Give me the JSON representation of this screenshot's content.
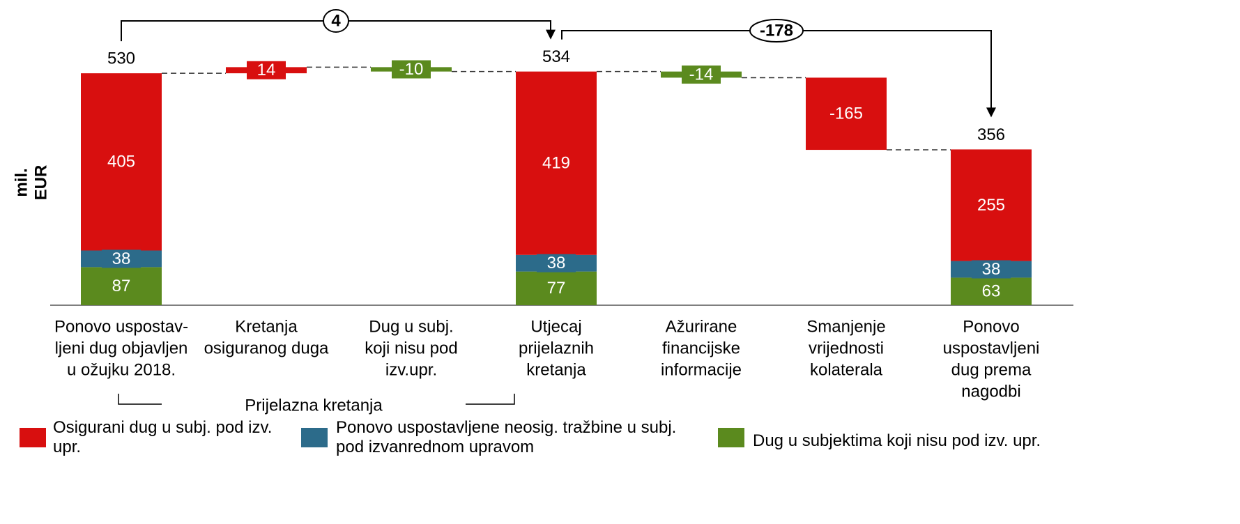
{
  "chart_data": {
    "type": "waterfall",
    "y_label": [
      "mil.",
      "EUR"
    ],
    "categories": [
      [
        "Ponovo uspostav-",
        "ljeni dug objavljen",
        "u ožujku 2018."
      ],
      [
        "Kretanja",
        "osiguranog duga"
      ],
      [
        "Dug u subj.",
        "koji nisu pod",
        "izv.upr."
      ],
      [
        "Utjecaj",
        "prijelaznih",
        "kretanja"
      ],
      [
        "Ažurirane",
        "financijske",
        "informacije"
      ],
      [
        "Smanjenje",
        "vrijednosti",
        "kolaterala"
      ],
      [
        "Ponovo",
        "uspostavljeni",
        "dug prema",
        "nagodbi"
      ]
    ],
    "totals": [
      530,
      null,
      null,
      534,
      null,
      null,
      356
    ],
    "series": [
      {
        "name": "Dug u subjektima koji nisu pod izv. upr.",
        "color": "#5b8a1e",
        "values": [
          87,
          null,
          -10,
          77,
          -14,
          null,
          63
        ]
      },
      {
        "name": "Ponovo uspostavljene neosig. tražbine u subj. pod izvanrednom upravom",
        "color": "#2c6b8a",
        "values": [
          38,
          null,
          null,
          38,
          null,
          null,
          38
        ]
      },
      {
        "name": "Osigurani dug u subj. pod izv. upr.",
        "color": "#d80f0f",
        "values": [
          405,
          14,
          null,
          419,
          null,
          -165,
          255
        ]
      }
    ],
    "bridges": [
      4,
      -178
    ],
    "group_label": "Prijelazna kretanja"
  }
}
